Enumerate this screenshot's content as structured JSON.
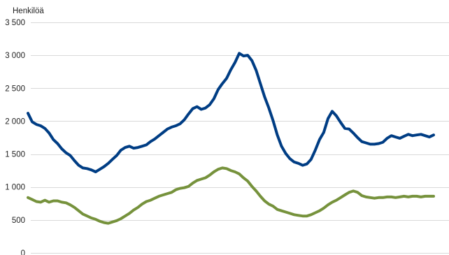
{
  "chart_data": {
    "type": "line",
    "title": "",
    "xlabel": "",
    "ylabel": "Henkilöä",
    "ylim": [
      0,
      3500
    ],
    "yticks": [
      0,
      500,
      1000,
      1500,
      2000,
      2500,
      3000,
      3500
    ],
    "ytick_labels": [
      "0",
      "500",
      "1 000",
      "1 500",
      "2 000",
      "2 500",
      "3 000",
      "3 500"
    ],
    "grid": true,
    "legend": "none",
    "x": [
      0,
      2,
      4,
      6,
      8,
      10,
      12,
      14,
      16,
      18,
      20,
      22,
      24,
      26,
      28,
      30,
      32,
      34,
      36,
      38,
      40,
      42,
      44,
      46,
      48,
      50,
      52,
      54,
      56,
      58,
      60,
      62,
      64,
      66,
      68,
      70,
      72,
      74,
      76,
      78,
      80,
      82,
      84,
      86,
      88,
      90,
      92,
      94,
      96,
      98,
      100,
      102,
      104,
      106,
      108,
      110,
      112,
      114,
      116,
      118,
      120,
      122,
      124,
      126,
      128,
      130,
      132,
      134,
      136,
      138,
      140,
      142,
      144,
      146,
      148,
      150,
      152,
      154,
      156,
      158,
      160,
      162,
      164,
      166,
      168,
      170,
      172,
      174,
      176,
      178,
      180,
      182,
      184,
      186,
      188,
      190,
      192
    ],
    "series": [
      {
        "color": "#003d84",
        "values": [
          2120,
          1990,
          1950,
          1930,
          1890,
          1820,
          1720,
          1660,
          1580,
          1520,
          1480,
          1400,
          1330,
          1290,
          1280,
          1260,
          1230,
          1270,
          1310,
          1360,
          1420,
          1480,
          1560,
          1600,
          1620,
          1590,
          1600,
          1620,
          1640,
          1690,
          1730,
          1780,
          1830,
          1880,
          1910,
          1930,
          1960,
          2020,
          2110,
          2190,
          2220,
          2180,
          2200,
          2250,
          2340,
          2480,
          2570,
          2650,
          2780,
          2890,
          3030,
          2990,
          3000,
          2920,
          2770,
          2570,
          2370,
          2200,
          2010,
          1790,
          1620,
          1510,
          1430,
          1380,
          1360,
          1330,
          1350,
          1420,
          1560,
          1720,
          1830,
          2040,
          2150,
          2080,
          1980,
          1890,
          1880,
          1820,
          1750,
          1690,
          1670,
          1650,
          1650,
          1660,
          1680,
          1740,
          1780,
          1760,
          1740,
          1770,
          1800,
          1780,
          1790,
          1800,
          1780,
          1760,
          1790
        ],
        "line_width": 4
      },
      {
        "color": "#76923c",
        "values": [
          840,
          810,
          780,
          770,
          800,
          770,
          790,
          790,
          770,
          760,
          730,
          690,
          640,
          590,
          560,
          530,
          510,
          480,
          460,
          450,
          470,
          490,
          520,
          560,
          600,
          650,
          690,
          740,
          780,
          800,
          830,
          860,
          880,
          900,
          920,
          960,
          980,
          990,
          1010,
          1060,
          1100,
          1120,
          1140,
          1180,
          1230,
          1270,
          1290,
          1280,
          1250,
          1230,
          1200,
          1140,
          1090,
          1010,
          940,
          860,
          790,
          740,
          710,
          660,
          640,
          620,
          600,
          580,
          570,
          560,
          560,
          580,
          610,
          640,
          680,
          730,
          770,
          800,
          840,
          880,
          920,
          940,
          920,
          870,
          850,
          840,
          830,
          840,
          840,
          850,
          850,
          840,
          850,
          860,
          850,
          860,
          860,
          850,
          860,
          860,
          860
        ],
        "line_width": 4
      }
    ]
  }
}
